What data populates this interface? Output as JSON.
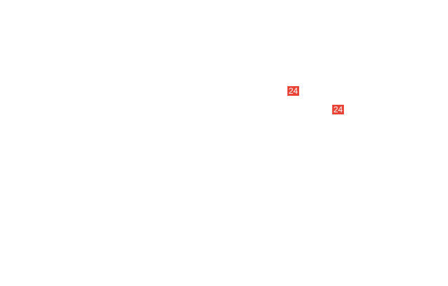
{
  "badges": [
    {
      "label": "24"
    },
    {
      "label": "24"
    }
  ],
  "colors": {
    "badge_background": "#e84335",
    "badge_text": "#ffffff",
    "page_background": "#ffffff"
  }
}
